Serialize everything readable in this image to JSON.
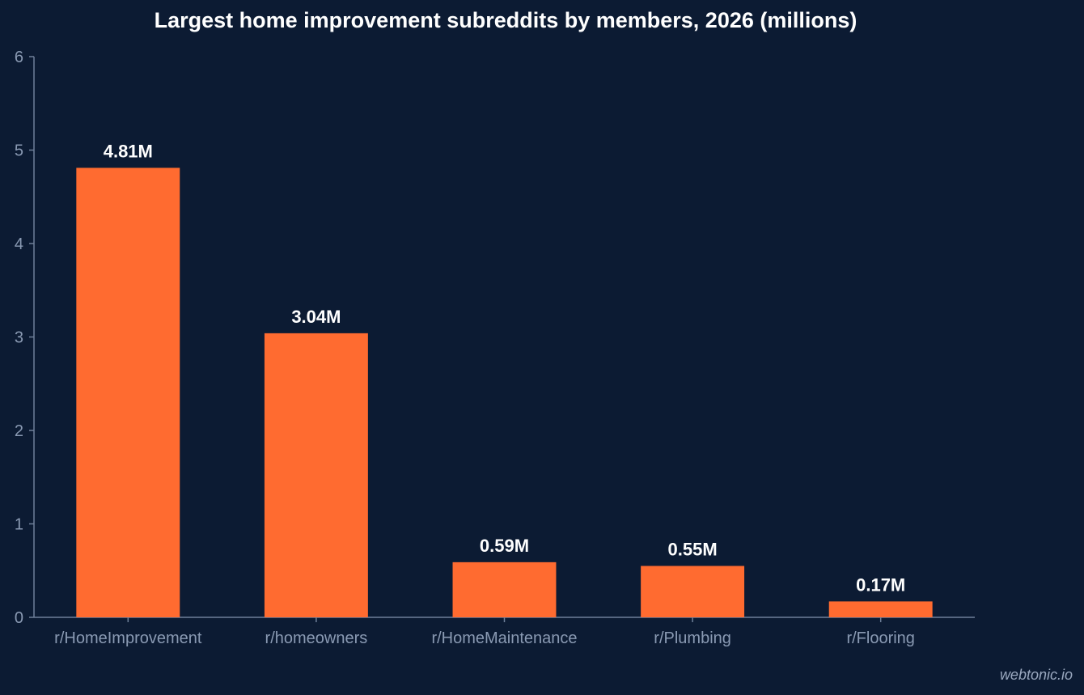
{
  "chart_data": {
    "type": "bar",
    "title": "Largest home improvement subreddits by members, 2026 (millions)",
    "categories": [
      "r/HomeImprovement",
      "r/homeowners",
      "r/HomeMaintenance",
      "r/Plumbing",
      "r/Flooring"
    ],
    "values": [
      4.81,
      3.04,
      0.59,
      0.55,
      0.17
    ],
    "data_labels": [
      "4.81M",
      "3.04M",
      "0.59M",
      "0.55M",
      "0.17M"
    ],
    "yticks": [
      0,
      1,
      2,
      3,
      4,
      5,
      6
    ],
    "ylim": [
      0,
      6
    ],
    "xlabel": "",
    "ylabel": "",
    "grid": false,
    "bar_color": "#ff6b30"
  },
  "watermark": "webtonic.io",
  "colors": {
    "background": "#0c1b33",
    "bar": "#ff6b30",
    "axis": "#6e7f99",
    "tick_text": "#8a9ab3",
    "label_text": "#ffffff"
  }
}
